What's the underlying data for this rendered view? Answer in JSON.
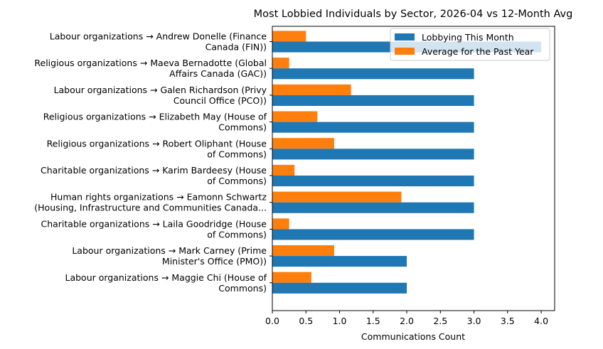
{
  "chart_data": {
    "type": "bar",
    "orientation": "horizontal",
    "title": "Most Lobbied Individuals by Sector, 2026-04 vs 12-Month Avg",
    "xlabel": "Communications Count",
    "ylabel": "",
    "xlim": [
      0,
      4.2
    ],
    "xticks": [
      "0.0",
      "0.5",
      "1.0",
      "1.5",
      "2.0",
      "2.5",
      "3.0",
      "3.5",
      "4.0"
    ],
    "grid": false,
    "legend_position": "top-right",
    "categories": [
      [
        "Labour organizations → Andrew Donelle (Finance",
        "Canada (FIN))"
      ],
      [
        "Religious organizations → Maeva Bernadotte (Global",
        "Affairs Canada (GAC))"
      ],
      [
        "Labour organizations → Galen Richardson (Privy",
        "Council Office (PCO))"
      ],
      [
        "Religious organizations → Elizabeth May (House of",
        "Commons)"
      ],
      [
        "Religious organizations → Robert Oliphant (House",
        "of Commons)"
      ],
      [
        "Charitable organizations → Karim Bardeesy (House",
        "of Commons)"
      ],
      [
        "Human rights organizations → Eamonn Schwartz",
        "(Housing, Infrastructure and Communities Canada..."
      ],
      [
        "Charitable organizations → Laila Goodridge (House",
        "of Commons)"
      ],
      [
        "Labour organizations → Mark Carney (Prime",
        "Minister's Office (PMO))"
      ],
      [
        "Labour organizations → Maggie Chi (House of",
        "Commons)"
      ]
    ],
    "series": [
      {
        "name": "Lobbying This Month",
        "color": "#1f77b4",
        "values": [
          4,
          3,
          3,
          3,
          3,
          3,
          3,
          3,
          2,
          2
        ]
      },
      {
        "name": "Average for the Past Year",
        "color": "#ff7f0e",
        "values": [
          0.5,
          0.25,
          1.17,
          0.67,
          0.92,
          0.33,
          1.92,
          0.25,
          0.92,
          0.58
        ]
      }
    ]
  }
}
